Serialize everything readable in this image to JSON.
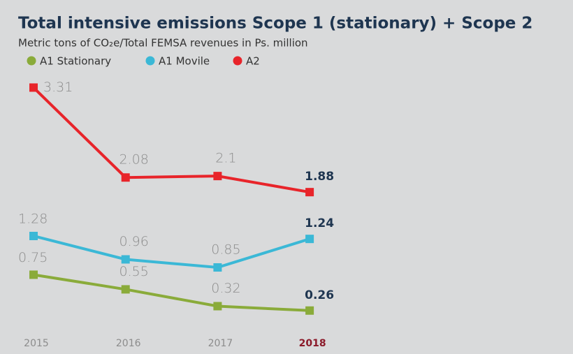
{
  "chart_data": {
    "type": "line",
    "title": "Total intensive emissions Scope 1 (stationary) + Scope 2",
    "subtitle": "Metric tons of CO₂e/Total FEMSA revenues in Ps. million",
    "categories": [
      "2015",
      "2016",
      "2017",
      "2018"
    ],
    "series": [
      {
        "name": "A1 Stationary",
        "color": "#8aab3a",
        "values": [
          0.75,
          0.55,
          0.32,
          0.26
        ]
      },
      {
        "name": "A1 Movile",
        "color": "#3bb8d6",
        "values": [
          1.28,
          0.96,
          0.85,
          1.24
        ]
      },
      {
        "name": "A2",
        "color": "#e8242a",
        "values": [
          3.31,
          2.08,
          2.1,
          1.88
        ]
      }
    ]
  }
}
